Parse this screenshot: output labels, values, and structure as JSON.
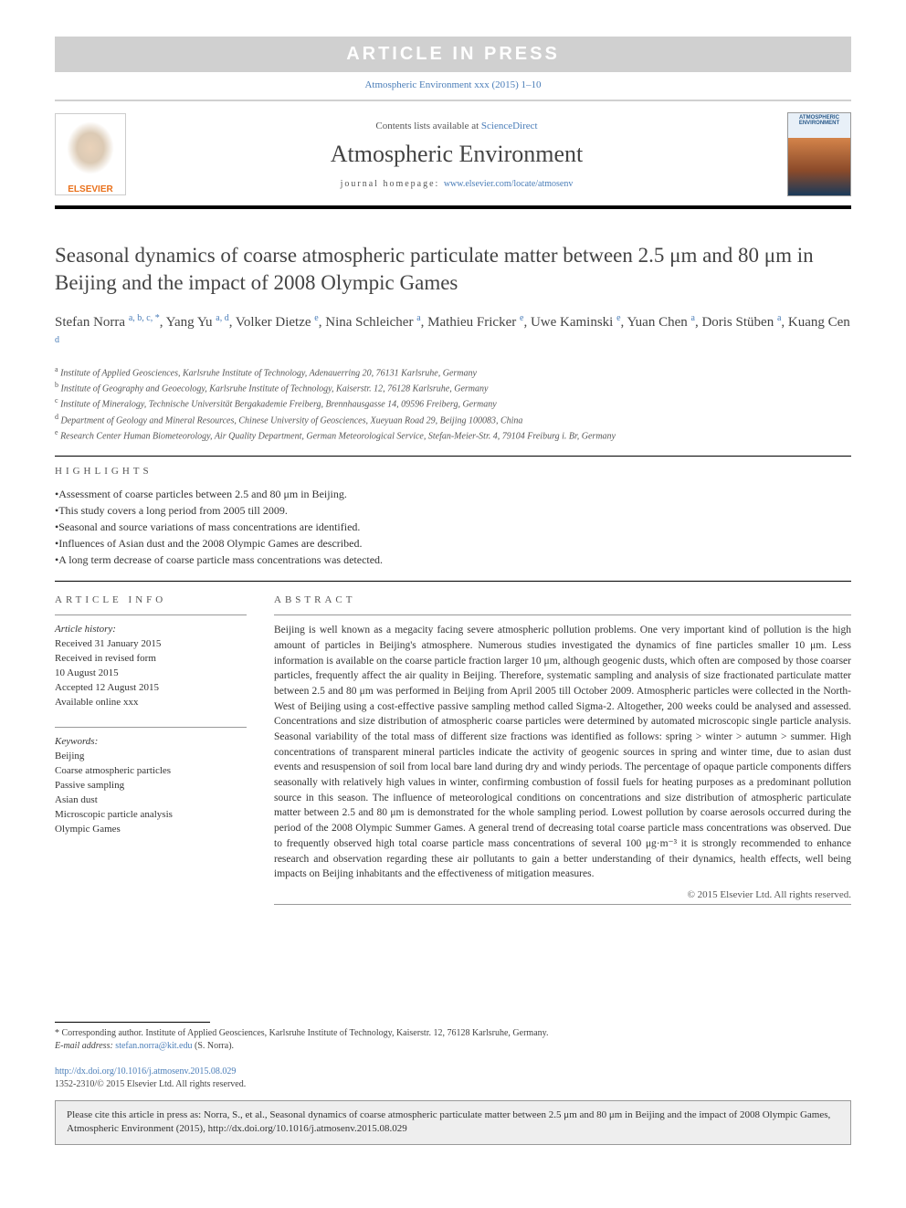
{
  "banner": "ARTICLE IN PRESS",
  "journal_ref": "Atmospheric Environment xxx (2015) 1–10",
  "header": {
    "contents_prefix": "Contents lists available at ",
    "contents_link": "ScienceDirect",
    "journal_name": "Atmospheric Environment",
    "homepage_prefix": "journal homepage: ",
    "homepage_url": "www.elsevier.com/locate/atmosenv",
    "elsevier_text": "ELSEVIER",
    "cover_text": "ATMOSPHERIC ENVIRONMENT"
  },
  "title": "Seasonal dynamics of coarse atmospheric particulate matter between 2.5 μm and 80 μm in Beijing and the impact of 2008 Olympic Games",
  "authors": [
    {
      "name": "Stefan Norra ",
      "sup": "a, b, c, *"
    },
    {
      "name": ", Yang Yu ",
      "sup": "a, d"
    },
    {
      "name": ", Volker Dietze ",
      "sup": "e"
    },
    {
      "name": ", Nina Schleicher ",
      "sup": "a"
    },
    {
      "name": ", Mathieu Fricker ",
      "sup": "e"
    },
    {
      "name": ", Uwe Kaminski ",
      "sup": "e"
    },
    {
      "name": ", Yuan Chen ",
      "sup": "a"
    },
    {
      "name": ", Doris Stüben ",
      "sup": "a"
    },
    {
      "name": ", Kuang Cen ",
      "sup": "d"
    }
  ],
  "affiliations": [
    {
      "sup": "a",
      "text": " Institute of Applied Geosciences, Karlsruhe Institute of Technology, Adenauerring 20, 76131 Karlsruhe, Germany"
    },
    {
      "sup": "b",
      "text": " Institute of Geography and Geoecology, Karlsruhe Institute of Technology, Kaiserstr. 12, 76128 Karlsruhe, Germany"
    },
    {
      "sup": "c",
      "text": " Institute of Mineralogy, Technische Universität Bergakademie Freiberg, Brennhausgasse 14, 09596 Freiberg, Germany"
    },
    {
      "sup": "d",
      "text": " Department of Geology and Mineral Resources, Chinese University of Geosciences, Xueyuan Road 29, Beijing 100083, China"
    },
    {
      "sup": "e",
      "text": " Research Center Human Biometeorology, Air Quality Department, German Meteorological Service, Stefan-Meier-Str. 4, 79104 Freiburg i. Br, Germany"
    }
  ],
  "highlights_label": "HIGHLIGHTS",
  "highlights": [
    "•Assessment of coarse particles between 2.5 and 80 μm in Beijing.",
    "•This study covers a long period from 2005 till 2009.",
    "•Seasonal and source variations of mass concentrations are identified.",
    "•Influences of Asian dust and the 2008 Olympic Games are described.",
    "•A long term decrease of coarse particle mass concentrations was detected."
  ],
  "article_info_label": "ARTICLE INFO",
  "abstract_label": "ABSTRACT",
  "history": {
    "label": "Article history:",
    "received": "Received 31 January 2015",
    "revised": "Received in revised form",
    "revised_date": "10 August 2015",
    "accepted": "Accepted 12 August 2015",
    "online": "Available online xxx"
  },
  "keywords_label": "Keywords:",
  "keywords": [
    "Beijing",
    "Coarse atmospheric particles",
    "Passive sampling",
    "Asian dust",
    "Microscopic particle analysis",
    "Olympic Games"
  ],
  "abstract": "Beijing is well known as a megacity facing severe atmospheric pollution problems. One very important kind of pollution is the high amount of particles in Beijing's atmosphere. Numerous studies investigated the dynamics of fine particles smaller 10 μm. Less information is available on the coarse particle fraction larger 10 μm, although geogenic dusts, which often are composed by those coarser particles, frequently affect the air quality in Beijing. Therefore, systematic sampling and analysis of size fractionated particulate matter between 2.5 and 80 μm was performed in Beijing from April 2005 till October 2009. Atmospheric particles were collected in the North-West of Beijing using a cost-effective passive sampling method called Sigma-2. Altogether, 200 weeks could be analysed and assessed. Concentrations and size distribution of atmospheric coarse particles were determined by automated microscopic single particle analysis. Seasonal variability of the total mass of different size fractions was identified as follows: spring > winter > autumn > summer. High concentrations of transparent mineral particles indicate the activity of geogenic sources in spring and winter time, due to asian dust events and resuspension of soil from local bare land during dry and windy periods. The percentage of opaque particle components differs seasonally with relatively high values in winter, confirming combustion of fossil fuels for heating purposes as a predominant pollution source in this season. The influence of meteorological conditions on concentrations and size distribution of atmospheric particulate matter between 2.5 and 80 μm is demonstrated for the whole sampling period. Lowest pollution by coarse aerosols occurred during the period of the 2008 Olympic Summer Games. A general trend of decreasing total coarse particle mass concentrations was observed. Due to frequently observed high total coarse particle mass concentrations of several 100 μg·m⁻³ it is strongly recommended to enhance research and observation regarding these air pollutants to gain a better understanding of their dynamics, health effects, well being impacts on Beijing inhabitants and the effectiveness of mitigation measures.",
  "copyright": "© 2015 Elsevier Ltd. All rights reserved.",
  "corresponding": {
    "text": "* Corresponding author. Institute of Applied Geosciences, Karlsruhe Institute of Technology, Kaiserstr. 12, 76128 Karlsruhe, Germany.",
    "email_label": "E-mail address: ",
    "email": "stefan.norra@kit.edu",
    "email_suffix": " (S. Norra)."
  },
  "doi": {
    "url": "http://dx.doi.org/10.1016/j.atmosenv.2015.08.029",
    "issn": "1352-2310/© 2015 Elsevier Ltd. All rights reserved."
  },
  "cite_box": "Please cite this article in press as: Norra, S., et al., Seasonal dynamics of coarse atmospheric particulate matter between 2.5 μm and 80 μm in Beijing and the impact of 2008 Olympic Games, Atmospheric Environment (2015), http://dx.doi.org/10.1016/j.atmosenv.2015.08.029"
}
